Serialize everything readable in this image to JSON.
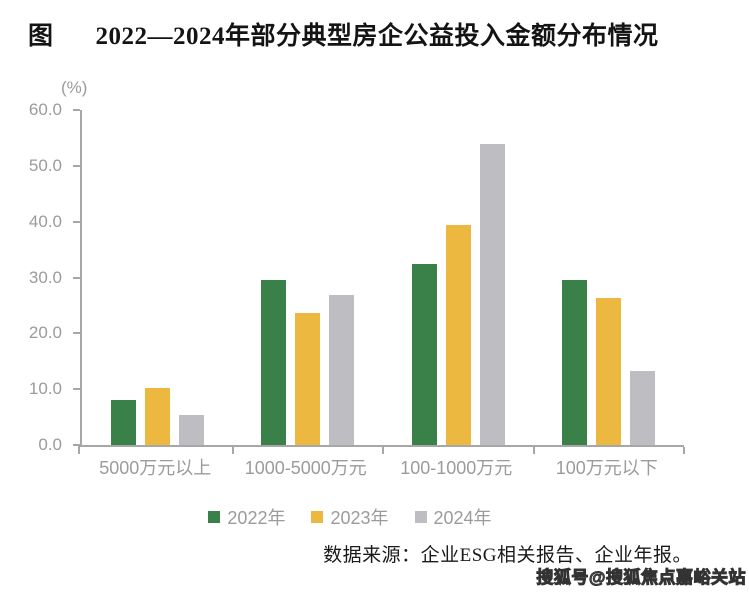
{
  "header": {
    "figure_label": "图",
    "title": "2022—2024年部分典型房企公益投入金额分布情况"
  },
  "chart_data": {
    "type": "bar",
    "title": "2022—2024年部分典型房企公益投入金额分布情况",
    "unit_label": "(%)",
    "xlabel": "",
    "ylabel": "(%)",
    "ylim": [
      0,
      60
    ],
    "y_ticks": [
      "60.0",
      "50.0",
      "40.0",
      "30.0",
      "20.0",
      "10.0",
      "0.0"
    ],
    "grid": false,
    "legend_position": "bottom",
    "categories": [
      "5000万元以上",
      "1000-5000万元",
      "100-1000万元",
      "100万元以下"
    ],
    "series": [
      {
        "name": "2022年",
        "color": "#3a8049",
        "values": [
          8.0,
          29.5,
          32.4,
          29.5
        ]
      },
      {
        "name": "2023年",
        "color": "#ecb840",
        "values": [
          10.3,
          23.7,
          39.5,
          26.3
        ]
      },
      {
        "name": "2024年",
        "color": "#bdbdc2",
        "values": [
          5.3,
          26.9,
          54.0,
          13.3
        ]
      }
    ]
  },
  "footer": {
    "source": "数据来源：企业ESG相关报告、企业年报。",
    "watermark": "搜狐号@搜狐焦点嘉峪关站"
  },
  "colors": {
    "axis": "#a7a7a7",
    "tick_text": "#9b9b9b",
    "title_text": "#141414",
    "series_2022": "#3a8049",
    "series_2023": "#ecb840",
    "series_2024": "#bdbdc2"
  }
}
